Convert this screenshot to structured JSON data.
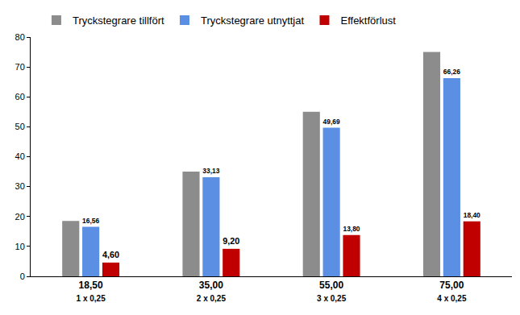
{
  "chart_data": {
    "type": "bar",
    "categories": [
      "18,50\n1 x 0,25",
      "35,00\n2 x 0,25",
      "55,00\n3 x 0,25",
      "75,00\n4 x 0,25"
    ],
    "series": [
      {
        "name": "Tryckstegrare tillfört",
        "color": "#8c8c8c",
        "values": [
          18.5,
          35,
          55,
          75
        ]
      },
      {
        "name": "Tryckstegrare utnyttjat",
        "color": "#5b8fe3",
        "values": [
          16.56,
          33.13,
          49.69,
          66.26
        ],
        "data_labels": true,
        "value_labels": [
          "16,56",
          "33,13",
          "49,69",
          "66,26"
        ]
      },
      {
        "name": "Effektförlust",
        "color": "#c00000",
        "values": [
          4.6,
          9.2,
          13.8,
          18.4
        ],
        "data_labels": true,
        "value_labels": [
          "4,60",
          "9,20",
          "13,80",
          "18,40"
        ]
      }
    ],
    "ylim": [
      0,
      80
    ],
    "yticks": [
      0,
      10,
      20,
      30,
      40,
      50,
      60,
      70,
      80
    ],
    "grid": false,
    "legend": "top"
  }
}
